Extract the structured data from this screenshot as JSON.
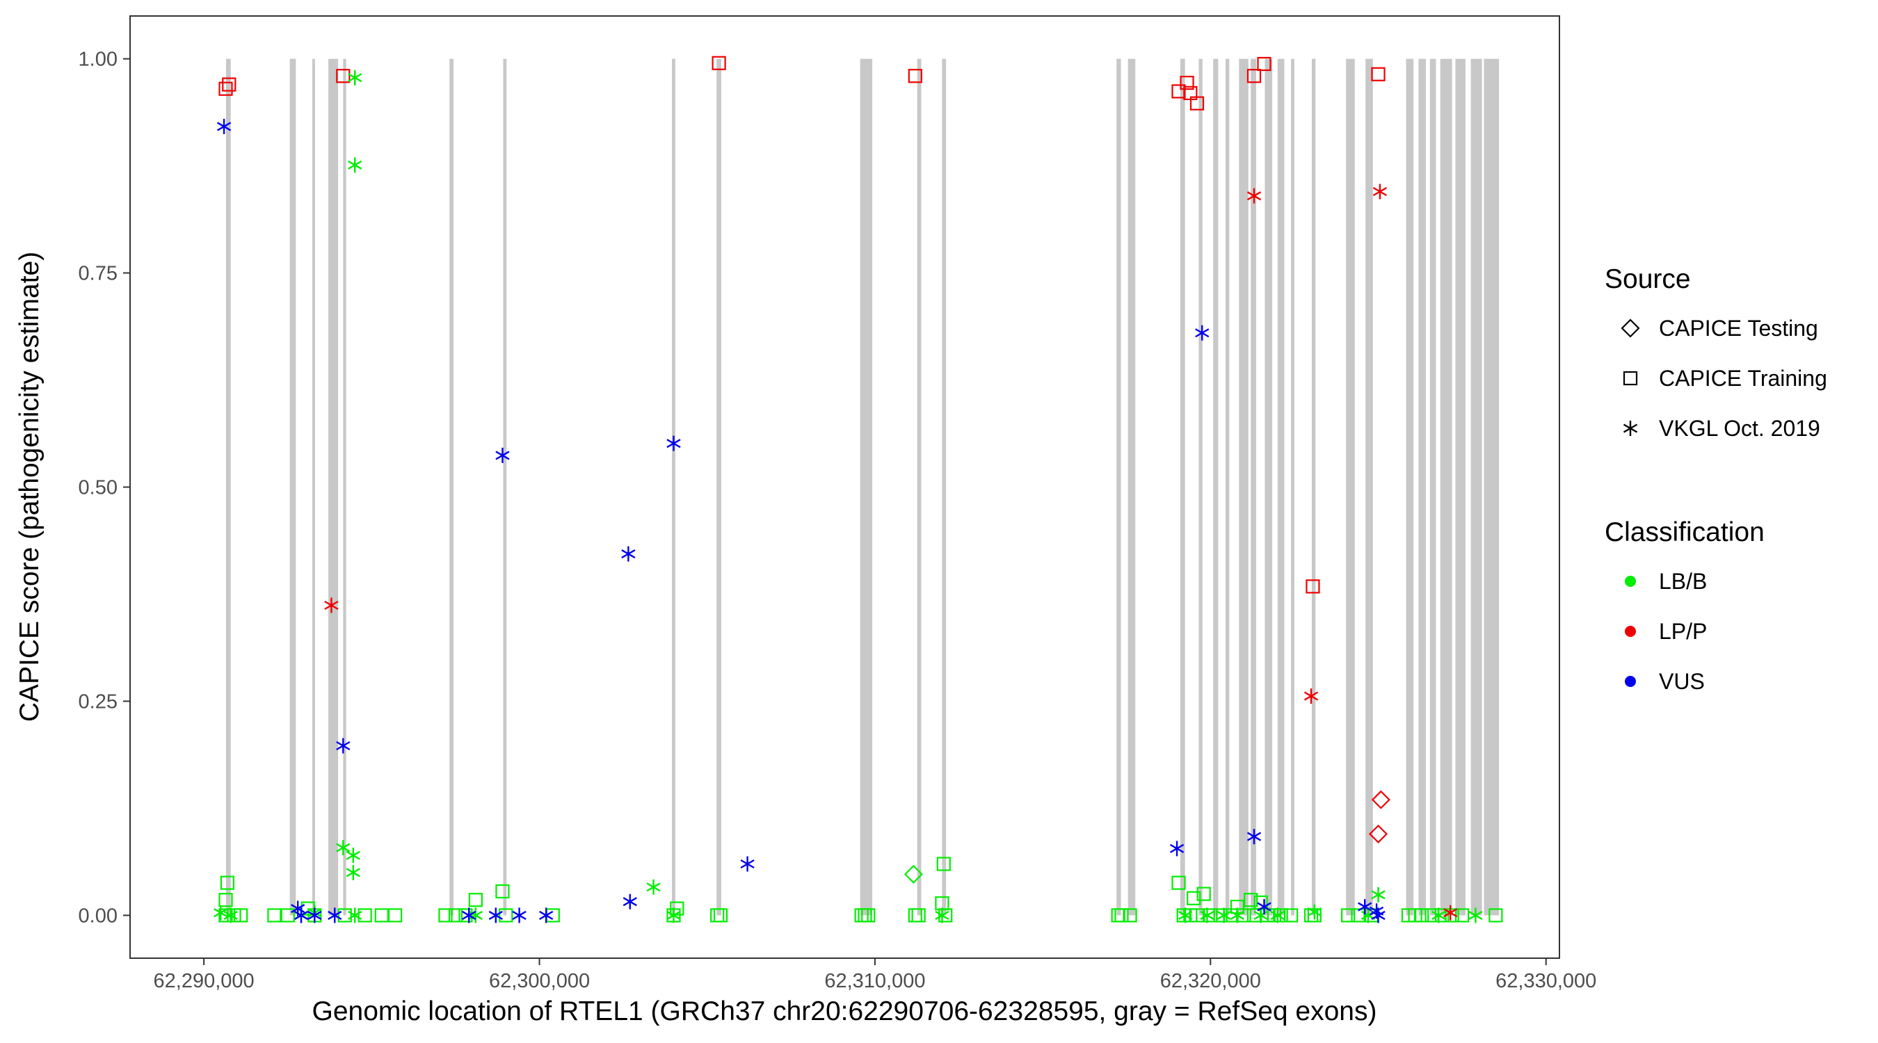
{
  "chart_data": {
    "type": "scatter",
    "xlabel": "Genomic location of RTEL1 (GRCh37 chr20:62290706-62328595, gray = RefSeq exons)",
    "ylabel": "CAPICE score (pathogenicity estimate)",
    "xlim": [
      62287800,
      62330400
    ],
    "ylim": [
      -0.05,
      1.05
    ],
    "xticks": [
      {
        "value": 62290000,
        "label": "62,290,000"
      },
      {
        "value": 62300000,
        "label": "62,300,000"
      },
      {
        "value": 62310000,
        "label": "62,310,000"
      },
      {
        "value": 62320000,
        "label": "62,320,000"
      },
      {
        "value": 62330000,
        "label": "62,330,000"
      }
    ],
    "yticks": [
      {
        "value": 0.0,
        "label": "0.00"
      },
      {
        "value": 0.25,
        "label": "0.25"
      },
      {
        "value": 0.5,
        "label": "0.50"
      },
      {
        "value": 0.75,
        "label": "0.75"
      },
      {
        "value": 1.0,
        "label": "1.00"
      }
    ],
    "grid": false,
    "exons": [
      [
        62290660,
        62290800
      ],
      [
        62292560,
        62292740
      ],
      [
        62293230,
        62293310
      ],
      [
        62293710,
        62294000
      ],
      [
        62294150,
        62294240
      ],
      [
        62297320,
        62297440
      ],
      [
        62298920,
        62299020
      ],
      [
        62303950,
        62304050
      ],
      [
        62305280,
        62305420
      ],
      [
        62309560,
        62309920
      ],
      [
        62311260,
        62311380
      ],
      [
        62312000,
        62312120
      ],
      [
        62317200,
        62317330
      ],
      [
        62317540,
        62317760
      ],
      [
        62319100,
        62319240
      ],
      [
        62319650,
        62319760
      ],
      [
        62320080,
        62320230
      ],
      [
        62320450,
        62320560
      ],
      [
        62320850,
        62321130
      ],
      [
        62321200,
        62321360
      ],
      [
        62321620,
        62321840
      ],
      [
        62322000,
        62322200
      ],
      [
        62322400,
        62322500
      ],
      [
        62323020,
        62323130
      ],
      [
        62324040,
        62324300
      ],
      [
        62324620,
        62324840
      ],
      [
        62325830,
        62326050
      ],
      [
        62326200,
        62326420
      ],
      [
        62326540,
        62326720
      ],
      [
        62326850,
        62327200
      ],
      [
        62327300,
        62327600
      ],
      [
        62327760,
        62328090
      ],
      [
        62328150,
        62328600
      ]
    ],
    "legend": {
      "position": "right",
      "source_title": "Source",
      "classification_title": "Classification",
      "sources": [
        {
          "label": "CAPICE Testing",
          "shape": "diamond"
        },
        {
          "label": "CAPICE Training",
          "shape": "square"
        },
        {
          "label": "VKGL Oct. 2019",
          "shape": "asterisk"
        }
      ],
      "classes": [
        {
          "label": "LB/B",
          "color": "#00ee00"
        },
        {
          "label": "LP/P",
          "color": "#ee0000"
        },
        {
          "label": "VUS",
          "color": "#0000ee"
        }
      ]
    },
    "series": [
      {
        "source": "CAPICE Testing",
        "classification": "LB/B",
        "color": "#00ee00",
        "shape": "diamond",
        "points": [
          [
            62311150,
            0.048
          ]
        ]
      },
      {
        "source": "CAPICE Testing",
        "classification": "LP/P",
        "color": "#ee0000",
        "shape": "diamond",
        "points": [
          [
            62325080,
            0.135
          ],
          [
            62325000,
            0.095
          ]
        ]
      },
      {
        "source": "CAPICE Training",
        "classification": "LB/B",
        "color": "#00ee00",
        "shape": "square",
        "points": [
          [
            62290700,
            0.038
          ],
          [
            62290650,
            0.018
          ],
          [
            62290650,
            0.0
          ],
          [
            62290900,
            0.0
          ],
          [
            62291100,
            0.0
          ],
          [
            62292100,
            0.0
          ],
          [
            62292500,
            0.0
          ],
          [
            62293100,
            0.008
          ],
          [
            62293300,
            0.0
          ],
          [
            62294200,
            0.0
          ],
          [
            62294800,
            0.0
          ],
          [
            62295300,
            0.0
          ],
          [
            62295700,
            0.0
          ],
          [
            62297200,
            0.0
          ],
          [
            62297500,
            0.0
          ],
          [
            62297800,
            0.0
          ],
          [
            62298100,
            0.018
          ],
          [
            62298900,
            0.028
          ],
          [
            62299000,
            0.0
          ],
          [
            62300400,
            0.0
          ],
          [
            62304000,
            0.0
          ],
          [
            62304100,
            0.008
          ],
          [
            62305300,
            0.0
          ],
          [
            62305400,
            0.0
          ],
          [
            62309600,
            0.0
          ],
          [
            62309700,
            0.0
          ],
          [
            62309800,
            0.0
          ],
          [
            62311200,
            0.0
          ],
          [
            62311300,
            0.0
          ],
          [
            62312050,
            0.06
          ],
          [
            62312000,
            0.014
          ],
          [
            62312100,
            0.0
          ],
          [
            62317250,
            0.0
          ],
          [
            62317350,
            0.0
          ],
          [
            62317600,
            0.0
          ],
          [
            62319050,
            0.038
          ],
          [
            62319200,
            0.0
          ],
          [
            62319400,
            0.0
          ],
          [
            62319500,
            0.02
          ],
          [
            62319600,
            0.0
          ],
          [
            62319800,
            0.025
          ],
          [
            62320000,
            0.0
          ],
          [
            62320300,
            0.0
          ],
          [
            62320600,
            0.0
          ],
          [
            62320800,
            0.01
          ],
          [
            62321000,
            0.0
          ],
          [
            62321200,
            0.018
          ],
          [
            62321300,
            0.0
          ],
          [
            62321500,
            0.015
          ],
          [
            62321700,
            0.0
          ],
          [
            62321900,
            0.0
          ],
          [
            62322100,
            0.0
          ],
          [
            62322400,
            0.0
          ],
          [
            62323000,
            0.0
          ],
          [
            62323100,
            0.0
          ],
          [
            62324100,
            0.0
          ],
          [
            62324400,
            0.0
          ],
          [
            62324800,
            0.0
          ],
          [
            62325900,
            0.0
          ],
          [
            62326100,
            0.0
          ],
          [
            62326300,
            0.0
          ],
          [
            62326600,
            0.0
          ],
          [
            62326900,
            0.0
          ],
          [
            62327200,
            0.0
          ],
          [
            62327500,
            0.0
          ],
          [
            62328500,
            0.0
          ]
        ]
      },
      {
        "source": "CAPICE Training",
        "classification": "LP/P",
        "color": "#ee0000",
        "shape": "square",
        "points": [
          [
            62290650,
            0.965
          ],
          [
            62290750,
            0.97
          ],
          [
            62294150,
            0.98
          ],
          [
            62305350,
            0.995
          ],
          [
            62311200,
            0.98
          ],
          [
            62319050,
            0.962
          ],
          [
            62319300,
            0.972
          ],
          [
            62319400,
            0.96
          ],
          [
            62319600,
            0.948
          ],
          [
            62321300,
            0.98
          ],
          [
            62321600,
            0.994
          ],
          [
            62323050,
            0.384
          ],
          [
            62325000,
            0.982
          ]
        ]
      },
      {
        "source": "VKGL Oct. 2019",
        "classification": "LB/B",
        "color": "#00ee00",
        "shape": "asterisk",
        "points": [
          [
            62294500,
            0.978
          ],
          [
            62294500,
            0.876
          ],
          [
            62294150,
            0.079
          ],
          [
            62294450,
            0.07
          ],
          [
            62294450,
            0.05
          ],
          [
            62290500,
            0.003
          ],
          [
            62290800,
            0.0
          ],
          [
            62292900,
            0.0
          ],
          [
            62293300,
            0.003
          ],
          [
            62294500,
            0.0
          ],
          [
            62298100,
            0.0
          ],
          [
            62303400,
            0.033
          ],
          [
            62304000,
            0.0
          ],
          [
            62312000,
            0.0
          ],
          [
            62319250,
            0.0
          ],
          [
            62319900,
            0.0
          ],
          [
            62320400,
            0.0
          ],
          [
            62320800,
            0.0
          ],
          [
            62321500,
            0.0
          ],
          [
            62322000,
            0.0
          ],
          [
            62323100,
            0.004
          ],
          [
            62325000,
            0.024
          ],
          [
            62324700,
            0.0
          ],
          [
            62326800,
            0.0
          ],
          [
            62327900,
            0.0
          ]
        ]
      },
      {
        "source": "VKGL Oct. 2019",
        "classification": "LP/P",
        "color": "#ee0000",
        "shape": "asterisk",
        "points": [
          [
            62293800,
            0.362
          ],
          [
            62321300,
            0.84
          ],
          [
            62325050,
            0.845
          ],
          [
            62323000,
            0.256
          ],
          [
            62327150,
            0.003
          ]
        ]
      },
      {
        "source": "VKGL Oct. 2019",
        "classification": "VUS",
        "color": "#0000ee",
        "shape": "asterisk",
        "points": [
          [
            62290600,
            0.921
          ],
          [
            62294150,
            0.198
          ],
          [
            62298900,
            0.537
          ],
          [
            62302650,
            0.422
          ],
          [
            62304000,
            0.551
          ],
          [
            62306200,
            0.06
          ],
          [
            62302700,
            0.016
          ],
          [
            62319750,
            0.68
          ],
          [
            62319000,
            0.078
          ],
          [
            62321300,
            0.092
          ],
          [
            62321600,
            0.01
          ],
          [
            62324600,
            0.01
          ],
          [
            62324950,
            0.005
          ],
          [
            62325000,
            0.0
          ],
          [
            62292800,
            0.008
          ],
          [
            62292900,
            0.0
          ],
          [
            62293300,
            0.0
          ],
          [
            62293900,
            0.0
          ],
          [
            62297900,
            0.0
          ],
          [
            62298700,
            0.0
          ],
          [
            62299400,
            0.0
          ],
          [
            62300200,
            0.0
          ]
        ]
      }
    ]
  }
}
